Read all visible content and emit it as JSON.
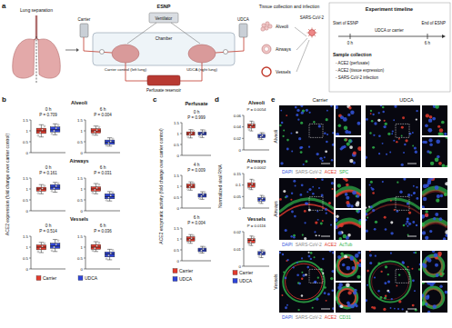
{
  "schematic": {
    "label": "a",
    "lung_separation": "Lung separation",
    "esnp": "ESNP",
    "ventilator": "Ventilator",
    "chamber": "Chamber",
    "carrier": "Carrier",
    "udca": "UDCA",
    "carrier_control": "Carrier control (left lung)",
    "udca_lung": "UDCA (right lung)",
    "reservoir": "Perfusate reservoir",
    "tissue": "Tissue collection and infection",
    "alveoli": "Alveoli",
    "airways": "Airways",
    "vessels": "Vessels",
    "virus": "SARS-CoV-2",
    "timeline_title": "Experiment timeline",
    "start": "Start of ESNP",
    "treatment": "UDCA or carrier",
    "end": "End of ESNP",
    "t0": "0 h",
    "t6": "6 h",
    "sample": "Sample collection",
    "items": [
      "- ACE2 (perfusate)",
      "- ACE2 (tissue expression)",
      "- SARS-CoV-2 infection"
    ]
  },
  "chart_data": [
    {
      "type": "box",
      "label": "b",
      "ylabel": "ACE2 expression (fold change over carrier control)",
      "ylim": [
        0,
        1.5
      ],
      "yticks": [
        0,
        0.5,
        1,
        1.5
      ],
      "legend": "bottom",
      "series": [
        {
          "name": "Carrier",
          "color": "#e23b2e"
        },
        {
          "name": "UDCA",
          "color": "#2f45d8"
        }
      ],
      "groups": [
        {
          "title": "Alveoli",
          "subplots": [
            {
              "title": "0 h",
              "p_label": "P = 0.709",
              "boxes": [
                {
                  "stats": [
                    0.72,
                    0.88,
                    1.0,
                    1.12,
                    1.28
                  ],
                  "points": [
                    0.78,
                    0.93,
                    1.06,
                    1.22
                  ]
                },
                {
                  "stats": [
                    0.82,
                    0.95,
                    1.05,
                    1.18,
                    1.32
                  ],
                  "points": [
                    0.86,
                    1.0,
                    1.12,
                    1.27
                  ]
                }
              ]
            },
            {
              "title": "6 h",
              "p_label": "P = 0.004",
              "boxes": [
                {
                  "stats": [
                    0.8,
                    0.9,
                    1.0,
                    1.1,
                    1.22
                  ],
                  "points": [
                    0.83,
                    0.96,
                    1.04,
                    1.18
                  ]
                },
                {
                  "stats": [
                    0.3,
                    0.38,
                    0.48,
                    0.58,
                    0.68
                  ],
                  "points": [
                    0.33,
                    0.44,
                    0.52,
                    0.63
                  ]
                }
              ]
            }
          ]
        },
        {
          "title": "Airways",
          "subplots": [
            {
              "title": "0 h",
              "p_label": "P = 0.161",
              "boxes": [
                {
                  "stats": [
                    0.78,
                    0.9,
                    1.0,
                    1.08,
                    1.2
                  ],
                  "points": [
                    0.81,
                    0.95,
                    1.03,
                    1.15
                  ]
                },
                {
                  "stats": [
                    0.85,
                    0.98,
                    1.08,
                    1.2,
                    1.3
                  ],
                  "points": [
                    0.9,
                    1.03,
                    1.14,
                    1.26
                  ]
                }
              ]
            },
            {
              "title": "6 h",
              "p_label": "P = 0.031",
              "boxes": [
                {
                  "stats": [
                    0.78,
                    0.9,
                    1.0,
                    1.1,
                    1.25
                  ],
                  "points": [
                    0.82,
                    0.96,
                    1.05,
                    1.2
                  ]
                },
                {
                  "stats": [
                    0.45,
                    0.55,
                    0.65,
                    0.78,
                    0.88
                  ],
                  "points": [
                    0.48,
                    0.6,
                    0.7,
                    0.84
                  ]
                }
              ]
            }
          ]
        },
        {
          "title": "Vessels",
          "subplots": [
            {
              "title": "0 h",
              "p_label": "P = 0.514",
              "boxes": [
                {
                  "stats": [
                    0.75,
                    0.88,
                    1.0,
                    1.1,
                    1.22
                  ],
                  "points": [
                    0.79,
                    0.94,
                    1.04,
                    1.18
                  ]
                },
                {
                  "stats": [
                    0.8,
                    0.95,
                    1.05,
                    1.18,
                    1.35
                  ],
                  "points": [
                    0.84,
                    1.0,
                    1.12,
                    1.3
                  ]
                }
              ]
            },
            {
              "title": "6 h",
              "p_label": "P = 0.036",
              "boxes": [
                {
                  "stats": [
                    0.8,
                    0.9,
                    1.0,
                    1.12,
                    1.25
                  ],
                  "points": [
                    0.84,
                    0.95,
                    1.06,
                    1.2
                  ]
                },
                {
                  "stats": [
                    0.42,
                    0.55,
                    0.68,
                    0.78,
                    0.9
                  ],
                  "points": [
                    0.46,
                    0.62,
                    0.72,
                    0.86
                  ]
                }
              ]
            }
          ]
        }
      ]
    },
    {
      "type": "box",
      "label": "c",
      "ylabel": "ACE2 enzymatic activity (fold change over carrier control)",
      "ylim": [
        0,
        1.5
      ],
      "yticks": [
        0,
        0.5,
        1,
        1.5
      ],
      "legend": "bottom",
      "series": [
        {
          "name": "Carrier",
          "color": "#e23b2e"
        },
        {
          "name": "UDCA",
          "color": "#2f45d8"
        }
      ],
      "groups": [
        {
          "title": "Perfusate",
          "subplots": [
            {
              "title": "0 h",
              "p_label": "P = 0.999",
              "boxes": [
                {
                  "stats": [
                    0.8,
                    0.92,
                    1.0,
                    1.08,
                    1.18
                  ],
                  "points": [
                    0.84,
                    0.97,
                    1.03,
                    1.14
                  ]
                },
                {
                  "stats": [
                    0.82,
                    0.93,
                    1.0,
                    1.07,
                    1.17
                  ],
                  "points": [
                    0.86,
                    0.96,
                    1.04,
                    1.13
                  ]
                }
              ]
            },
            {
              "title": "4 h",
              "p_label": "P = 0.009",
              "boxes": [
                {
                  "stats": [
                    0.82,
                    0.92,
                    1.0,
                    1.1,
                    1.2
                  ],
                  "points": [
                    0.85,
                    0.97,
                    1.05,
                    1.16
                  ]
                },
                {
                  "stats": [
                    0.4,
                    0.5,
                    0.58,
                    0.66,
                    0.75
                  ],
                  "points": [
                    0.44,
                    0.55,
                    0.62,
                    0.72
                  ]
                }
              ]
            },
            {
              "title": "6 h",
              "p_label": "P = 0.004",
              "boxes": [
                {
                  "stats": [
                    0.8,
                    0.9,
                    1.0,
                    1.1,
                    1.2
                  ],
                  "points": [
                    0.84,
                    0.96,
                    1.04,
                    1.16
                  ]
                },
                {
                  "stats": [
                    0.35,
                    0.42,
                    0.5,
                    0.58,
                    0.66
                  ],
                  "points": [
                    0.38,
                    0.47,
                    0.54,
                    0.62
                  ]
                }
              ]
            }
          ]
        }
      ]
    },
    {
      "type": "box",
      "label": "d",
      "ylabel": "Normalized viral RNA",
      "legend": "bottom",
      "series": [
        {
          "name": "Carrier",
          "color": "#e23b2e"
        },
        {
          "name": "UDCA",
          "color": "#2f45d8"
        }
      ],
      "groups": [
        {
          "title": "Alveoli",
          "subplots": [
            {
              "p_label": "P = 0.0054",
              "ylim": [
                0,
                0.06
              ],
              "yticks": [
                0,
                0.02,
                0.04,
                0.06
              ],
              "boxes": [
                {
                  "stats": [
                    0.033,
                    0.038,
                    0.042,
                    0.045,
                    0.05
                  ],
                  "points": [
                    0.035,
                    0.04,
                    0.044,
                    0.048
                  ]
                },
                {
                  "stats": [
                    0.018,
                    0.021,
                    0.024,
                    0.027,
                    0.03
                  ],
                  "points": [
                    0.019,
                    0.023,
                    0.025,
                    0.029
                  ]
                }
              ]
            }
          ]
        },
        {
          "title": "Airways",
          "subplots": [
            {
              "p_label": "P = 0.0002",
              "ylim": [
                0,
                0.15
              ],
              "yticks": [
                0,
                0.05,
                0.1,
                0.15
              ],
              "boxes": [
                {
                  "stats": [
                    0.08,
                    0.09,
                    0.1,
                    0.11,
                    0.125
                  ],
                  "points": [
                    0.085,
                    0.095,
                    0.105,
                    0.12
                  ]
                },
                {
                  "stats": [
                    0.02,
                    0.03,
                    0.038,
                    0.045,
                    0.055
                  ],
                  "points": [
                    0.024,
                    0.034,
                    0.041,
                    0.05
                  ]
                }
              ]
            }
          ]
        },
        {
          "title": "Vessels",
          "subplots": [
            {
              "p_label": "P = 0.0116",
              "ylim": [
                0,
                0.02
              ],
              "yticks": [
                0,
                0.01,
                0.02
              ],
              "boxes": [
                {
                  "stats": [
                    0.012,
                    0.0135,
                    0.015,
                    0.016,
                    0.0175
                  ],
                  "points": [
                    0.0125,
                    0.014,
                    0.0155,
                    0.017
                  ]
                },
                {
                  "stats": [
                    0.005,
                    0.0065,
                    0.0075,
                    0.0085,
                    0.0095
                  ],
                  "points": [
                    0.0055,
                    0.007,
                    0.008,
                    0.009
                  ]
                }
              ]
            }
          ]
        }
      ]
    }
  ],
  "microscopy": {
    "label": "e",
    "columns": [
      "Carrier",
      "UDCA"
    ],
    "rows": [
      {
        "title": "Alveoli",
        "stains": [
          {
            "text": "DAPI",
            "color": "#3355dd"
          },
          {
            "text": "SARS-CoV-2",
            "color": "#8a8a8a"
          },
          {
            "text": "ACE2",
            "color": "#e23b2e"
          },
          {
            "text": "SPC",
            "color": "#2fb34a"
          }
        ]
      },
      {
        "title": "Airways",
        "stains": [
          {
            "text": "DAPI",
            "color": "#3355dd"
          },
          {
            "text": "SARS-CoV-2",
            "color": "#8a8a8a"
          },
          {
            "text": "ACE2",
            "color": "#e23b2e"
          },
          {
            "text": "AcTub",
            "color": "#2fb34a"
          }
        ]
      },
      {
        "title": "Vessels",
        "stains": [
          {
            "text": "DAPI",
            "color": "#3355dd"
          },
          {
            "text": "SARS-CoV-2",
            "color": "#8a8a8a"
          },
          {
            "text": "ACE2",
            "color": "#e23b2e"
          },
          {
            "text": "CD31",
            "color": "#2fb34a"
          }
        ]
      }
    ]
  }
}
